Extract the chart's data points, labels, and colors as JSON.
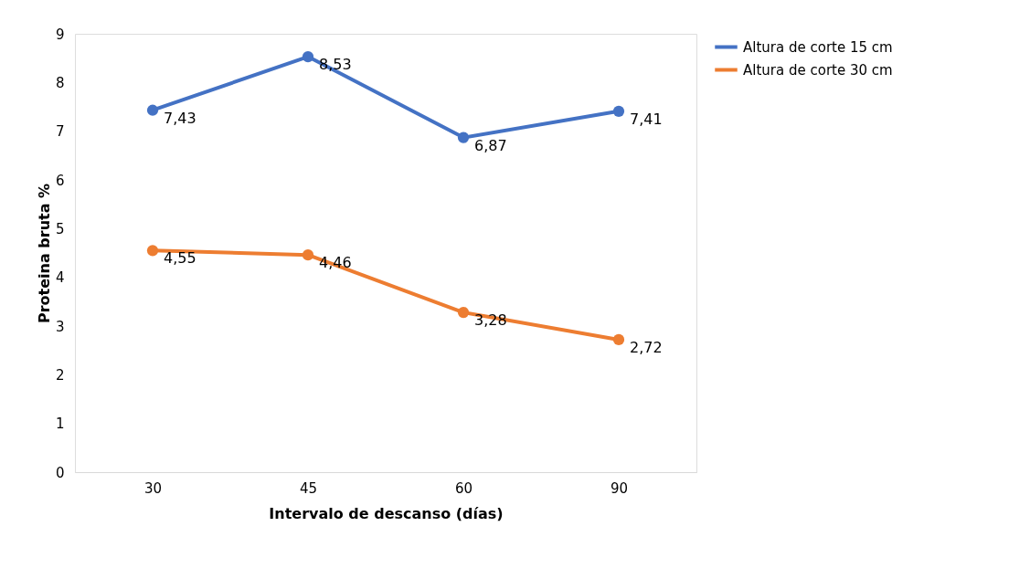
{
  "chart_data": {
    "type": "line",
    "xlabel": "Intervalo de descanso (días)",
    "ylabel": "Proteina bruta %",
    "categories": [
      "30",
      "45",
      "60",
      "90"
    ],
    "series": [
      {
        "name": "Altura de corte 15 cm",
        "color": "#4472c4",
        "values": [
          7.43,
          8.53,
          6.87,
          7.41
        ],
        "value_labels": [
          "7,43",
          "8,53",
          "6,87",
          "7,41"
        ]
      },
      {
        "name": "Altura de corte 30 cm",
        "color": "#ed7d31",
        "values": [
          4.55,
          4.46,
          3.28,
          2.72
        ],
        "value_labels": [
          "4,55",
          "4,46",
          "3,28",
          "2,72"
        ]
      }
    ],
    "ylim": [
      0,
      9
    ],
    "yticks": [
      0,
      1,
      2,
      3,
      4,
      5,
      6,
      7,
      8,
      9
    ],
    "legend": "right",
    "marker": "circle",
    "line_style": "solid"
  }
}
